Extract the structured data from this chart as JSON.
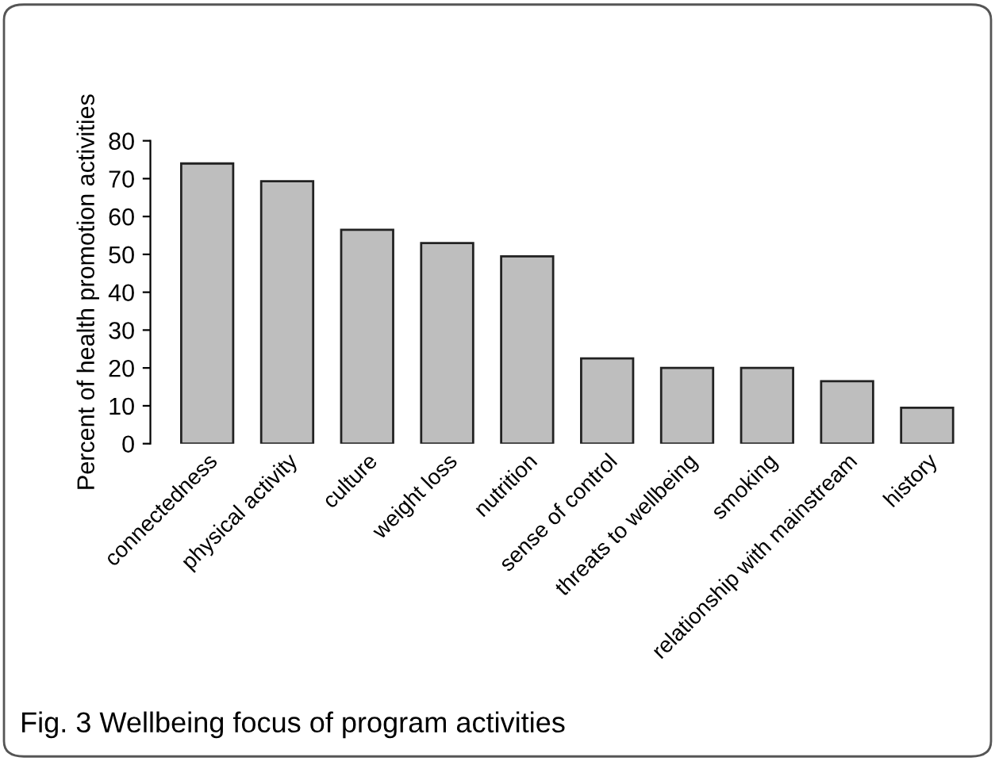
{
  "chart_data": {
    "type": "bar",
    "ylabel": "Percent of health promotion activities",
    "categories": [
      "connectedness",
      "physical activity",
      "culture",
      "weight loss",
      "nutrition",
      "sense of control",
      "threats to wellbeing",
      "smoking",
      "relationship with mainstream",
      "history"
    ],
    "values": [
      74,
      69.3,
      56.5,
      53,
      49.5,
      22.5,
      20,
      20,
      16.5,
      9.5
    ],
    "color": "#bebebe",
    "ylim": [
      0,
      80
    ],
    "yticks": [
      0,
      10,
      20,
      30,
      40,
      50,
      60,
      70,
      80
    ],
    "grid": false,
    "annotations": [
      "Fig. 3 Wellbeing focus of program activities"
    ]
  }
}
